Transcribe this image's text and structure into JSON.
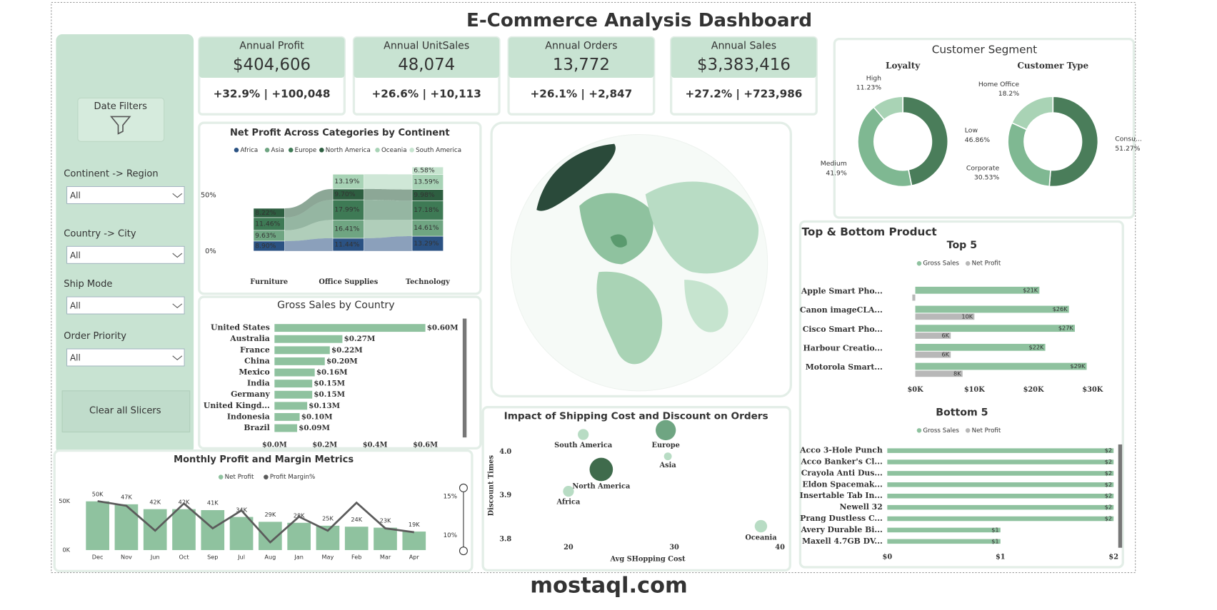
{
  "title": "E-Commerce Analysis Dashboard",
  "filters": {
    "date_button": "Date Filters",
    "slicers": [
      {
        "label": "Continent -> Region",
        "value": "All"
      },
      {
        "label": "Country -> City",
        "value": "All"
      },
      {
        "label": "Ship Mode",
        "value": "All"
      },
      {
        "label": "Order Priority",
        "value": "All"
      }
    ],
    "clear_button": "Clear all Slicers"
  },
  "kpis": [
    {
      "label": "Annual Profit",
      "value": "$404,606",
      "change": "+32.9% | +100,048"
    },
    {
      "label": "Annual UnitSales",
      "value": "48,074",
      "change": "+26.6% | +10,113"
    },
    {
      "label": "Annual Orders",
      "value": "13,772",
      "change": "+26.1% | +2,847"
    },
    {
      "label": "Annual Sales",
      "value": "$3,383,416",
      "change": "+27.2% | +723,986"
    }
  ],
  "segment_title": "Customer Segment",
  "product_title": "Top & Bottom Product",
  "watermark": "mostaql.com",
  "chart_data": [
    {
      "type": "ribbon",
      "title": "Net Profit Across Categories by Continent",
      "categories": [
        "Furniture",
        "Office Supplies",
        "Technology"
      ],
      "series": [
        {
          "name": "Africa",
          "color": "#2b5283",
          "values": [
            8.9,
            11.44,
            13.29
          ],
          "value_labels": [
            "8.90%",
            "11.44%",
            "13.29%"
          ]
        },
        {
          "name": "Asia",
          "color": "#6fa582",
          "values": [
            9.63,
            16.41,
            14.61
          ],
          "value_labels": [
            "9.63%",
            "16.41%",
            "14.61%"
          ]
        },
        {
          "name": "Europe",
          "color": "#3e7a55",
          "values": [
            11.46,
            17.99,
            17.18
          ],
          "value_labels": [
            "11.46%",
            "17.99%",
            "17.18%"
          ]
        },
        {
          "name": "North America",
          "color": "#2d5e40",
          "values": [
            8.22,
            9.7,
            9.98
          ],
          "value_labels": [
            "8.22%",
            "9.70%",
            "9.98%"
          ]
        },
        {
          "name": "Oceania",
          "color": "#a8d3b6",
          "values": [
            null,
            13.19,
            13.59
          ],
          "value_labels": [
            null,
            "13.19%",
            "13.59%"
          ]
        },
        {
          "name": "South America",
          "color": "#c6e4cf",
          "values": [
            null,
            null,
            6.58
          ],
          "value_labels": [
            null,
            null,
            "6.58%"
          ]
        }
      ],
      "ylim": [
        0,
        80
      ],
      "yticks": [
        {
          "value": 0,
          "label": "0%"
        },
        {
          "value": 50,
          "label": "50%"
        }
      ]
    },
    {
      "type": "hbar",
      "title": "Gross Sales by Country",
      "categories": [
        "United States",
        "Australia",
        "France",
        "China",
        "Mexico",
        "India",
        "Germany",
        "United Kingd...",
        "Indonesia",
        "Brazil"
      ],
      "values": [
        0.6,
        0.27,
        0.22,
        0.2,
        0.16,
        0.15,
        0.15,
        0.13,
        0.1,
        0.09
      ],
      "value_labels": [
        "$0.60M",
        "$0.27M",
        "$0.22M",
        "$0.20M",
        "$0.16M",
        "$0.15M",
        "$0.15M",
        "$0.13M",
        "$0.10M",
        "$0.09M"
      ],
      "color": "#8fc29f",
      "xlim": [
        0,
        0.6
      ],
      "xticks": [
        {
          "value": 0,
          "label": "$0.0M"
        },
        {
          "value": 0.2,
          "label": "$0.2M"
        },
        {
          "value": 0.4,
          "label": "$0.4M"
        },
        {
          "value": 0.6,
          "label": "$0.6M"
        }
      ]
    },
    {
      "type": "combo",
      "title": "Monthly Profit and Margin Metrics",
      "categories": [
        "Dec",
        "Nov",
        "Jun",
        "Oct",
        "Sep",
        "Jul",
        "Aug",
        "Jan",
        "May",
        "Feb",
        "Mar",
        "Apr"
      ],
      "series": [
        {
          "name": "Net Profit",
          "type": "bar",
          "color": "#8fc29f",
          "values": [
            50000,
            47000,
            42000,
            42000,
            41000,
            34000,
            29000,
            28000,
            25000,
            24000,
            23000,
            19000
          ],
          "value_labels": [
            "50K",
            "47K",
            "42K",
            "42K",
            "41K",
            "34K",
            "29K",
            "28K",
            "25K",
            "24K",
            "23K",
            "19K"
          ]
        },
        {
          "name": "Profit Margin%",
          "type": "line",
          "axis": "y2",
          "color": "#5b5b5b",
          "values": [
            14.4,
            13.8,
            10.6,
            14.1,
            10.9,
            13.2,
            9.1,
            12.4,
            10.6,
            14.2,
            10.9,
            10.4
          ]
        }
      ],
      "ylim": [
        0,
        55000
      ],
      "yticks": [
        {
          "value": 0,
          "label": "0K"
        },
        {
          "value": 50000,
          "label": "50K"
        }
      ],
      "y2lim": [
        8.1,
        15
      ],
      "y2ticks": [
        {
          "value": 10,
          "label": "10%"
        },
        {
          "value": 15,
          "label": "15%"
        }
      ]
    },
    {
      "type": "bubble",
      "title": "Impact of Shipping Cost and Discount on Orders",
      "xlabel": "Avg SHopping Cost",
      "ylabel": "Discount Times",
      "categories": [
        "South America",
        "Europe",
        "Asia",
        "North America",
        "Africa",
        "Oceania"
      ],
      "x": [
        21.4,
        29.2,
        29.4,
        23.1,
        20.0,
        38.2
      ],
      "values": [
        4.04,
        4.05,
        3.99,
        3.96,
        3.91,
        3.83
      ],
      "sizes": [
        7,
        13,
        5,
        15,
        7,
        8
      ],
      "colors": [
        "#b8dcc4",
        "#6fa582",
        "#b8dcc4",
        "#3f6b4c",
        "#b8dcc4",
        "#b8dcc4"
      ],
      "xlim": [
        15,
        40
      ],
      "xticks": [
        20,
        30,
        40
      ],
      "ylim": [
        3.77,
        4.06
      ],
      "yticks": [
        3.8,
        3.9,
        {
          "value": 4,
          "label": "4.0"
        }
      ]
    },
    {
      "type": "donut",
      "title": "Loyalty",
      "categories": [
        "Low",
        "Medium",
        "High"
      ],
      "values": [
        46.86,
        41.9,
        11.23
      ],
      "value_labels": [
        "46.86%",
        "41.9%",
        "11.23%"
      ],
      "colors": [
        "#4a7d5a",
        "#7fb892",
        "#a9d3b5"
      ]
    },
    {
      "type": "donut",
      "title": "Customer Type",
      "categories": [
        "Consu...",
        "Corporate",
        "Home Office"
      ],
      "values": [
        51.27,
        30.53,
        18.2
      ],
      "value_labels": [
        "51.27%",
        "30.53%",
        "18.2%"
      ],
      "colors": [
        "#4a7d5a",
        "#7fb892",
        "#a9d3b5"
      ]
    },
    {
      "type": "hbar",
      "title": "Top 5",
      "categories": [
        "Apple Smart Pho...",
        "Canon imageCLA...",
        "Cisco Smart Pho...",
        "Harbour Creatio...",
        "Motorola Smart..."
      ],
      "series": [
        {
          "name": "Gross Sales",
          "color": "#8fc29f",
          "values": [
            21000,
            26000,
            27000,
            22000,
            29000
          ],
          "value_labels": [
            "$21K",
            "$26K",
            "$27K",
            "$22K",
            "$29K"
          ]
        },
        {
          "name": "Net Profit",
          "color": "#b8b8b8",
          "values": [
            -500,
            10000,
            6000,
            6000,
            8000
          ],
          "value_labels": [
            null,
            "10K",
            "6K",
            "6K",
            "8K"
          ]
        }
      ],
      "xlim": [
        0,
        32000
      ],
      "xticks": [
        {
          "value": 0,
          "label": "$0K"
        },
        {
          "value": 10000,
          "label": "$10K"
        },
        {
          "value": 20000,
          "label": "$20K"
        },
        {
          "value": 30000,
          "label": "$30K"
        }
      ]
    },
    {
      "type": "hbar",
      "title": "Bottom 5",
      "categories": [
        "Acco 3-Hole Punch",
        "Acco Banker's Cl...",
        "Crayola Anti Dus...",
        "Eldon Spacemak...",
        "Insertable Tab In...",
        "Newell 32",
        "Prang Dustless C...",
        "Avery Durable Bi...",
        "Maxell 4.7GB DV..."
      ],
      "series": [
        {
          "name": "Gross Sales",
          "color": "#8fc29f",
          "values": [
            2,
            2,
            2,
            2,
            2,
            2,
            2,
            1,
            1
          ],
          "value_labels": [
            "$2",
            "$2",
            "$2",
            "$2",
            "$2",
            "$2",
            "$2",
            "$1",
            "$1"
          ]
        },
        {
          "name": "Net Profit",
          "color": "#b8b8b8",
          "values": [
            null,
            null,
            null,
            null,
            null,
            null,
            null,
            null,
            null
          ]
        }
      ],
      "xlim": [
        0,
        2.05
      ],
      "xticks": [
        {
          "value": 0,
          "label": "$0"
        },
        {
          "value": 1,
          "label": "$1"
        },
        {
          "value": 2,
          "label": "$2"
        }
      ]
    }
  ]
}
